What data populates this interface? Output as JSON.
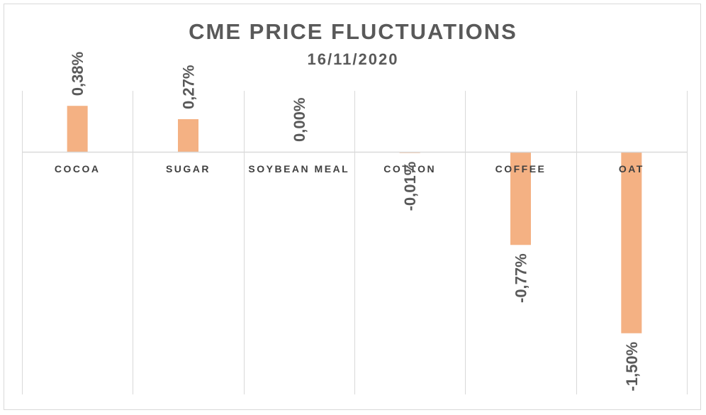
{
  "chart_data": {
    "type": "bar",
    "title": "CME PRICE FLUCTUATIONS",
    "subtitle": "16/11/2020",
    "categories": [
      "COCOA",
      "SUGAR",
      "SOYBEAN MEAL",
      "COTTON",
      "COFFEE",
      "OAT"
    ],
    "values": [
      0.38,
      0.27,
      0.0,
      -0.01,
      -0.77,
      -1.5
    ],
    "data_labels": [
      "0,38%",
      "0,27%",
      "0,00%",
      "-0,01%",
      "-0,77%",
      "-1,50%"
    ],
    "unit": "%",
    "ylim": [
      -2.0,
      0.5
    ],
    "gridlines": "vertical",
    "legend": "none",
    "colors": {
      "bar": "#F4B183",
      "grid": "#d9d9d9",
      "text": "#595959"
    }
  }
}
